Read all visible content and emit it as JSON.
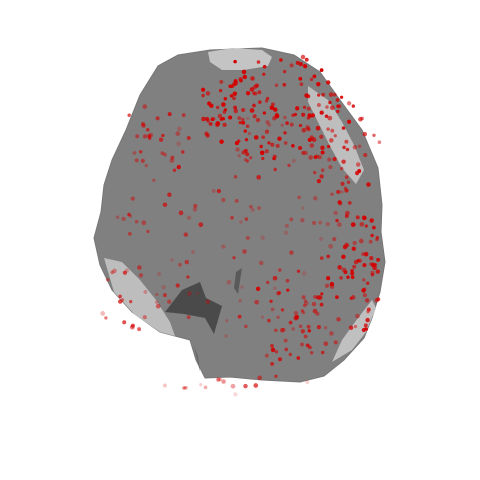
{
  "figure": {
    "background": "#ffffff",
    "surface": {
      "main_color": "#808080",
      "highlight_color": "#c4c4c4",
      "shadow_color": "#4a4a4a",
      "edge_color": "#6e6e6e"
    },
    "markers": {
      "color": "#d40000",
      "shape": "circle"
    }
  }
}
